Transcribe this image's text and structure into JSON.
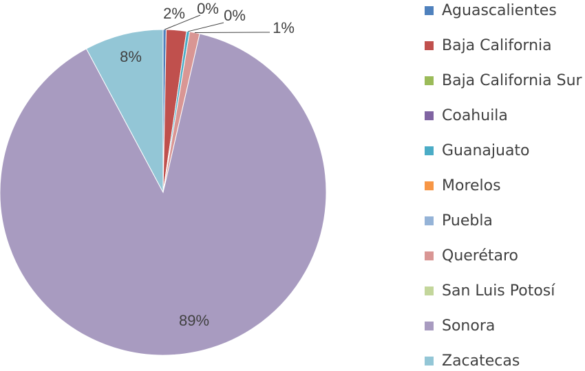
{
  "chart_data": {
    "type": "pie",
    "title": "",
    "legend_position": "right",
    "categories": [
      "Aguascalientes",
      "Baja California",
      "Baja California Sur",
      "Coahuila",
      "Guanajuato",
      "Morelos",
      "Puebla",
      "Querétaro",
      "San Luis Potosí",
      "Sonora",
      "Zacatecas"
    ],
    "values": [
      0.3,
      2.0,
      0.0,
      0.0,
      0.3,
      0.0,
      0.0,
      1.0,
      0.0,
      88.6,
      7.8
    ],
    "colors": [
      "#4F81BD",
      "#C0504D",
      "#9BBB59",
      "#8064A2",
      "#4BACC6",
      "#F79646",
      "#95B3D7",
      "#D99694",
      "#C3D69B",
      "#A89BC0",
      "#93C6D6"
    ],
    "data_labels": [
      {
        "category": "Baja California",
        "text": "2%"
      },
      {
        "category": "Aguascalientes",
        "text": "0%"
      },
      {
        "category": "Guanajuato",
        "text": "0%"
      },
      {
        "category": "Querétaro",
        "text": "1%"
      },
      {
        "category": "Zacatecas",
        "text": "8%"
      },
      {
        "category": "Sonora",
        "text": "89%"
      }
    ]
  }
}
